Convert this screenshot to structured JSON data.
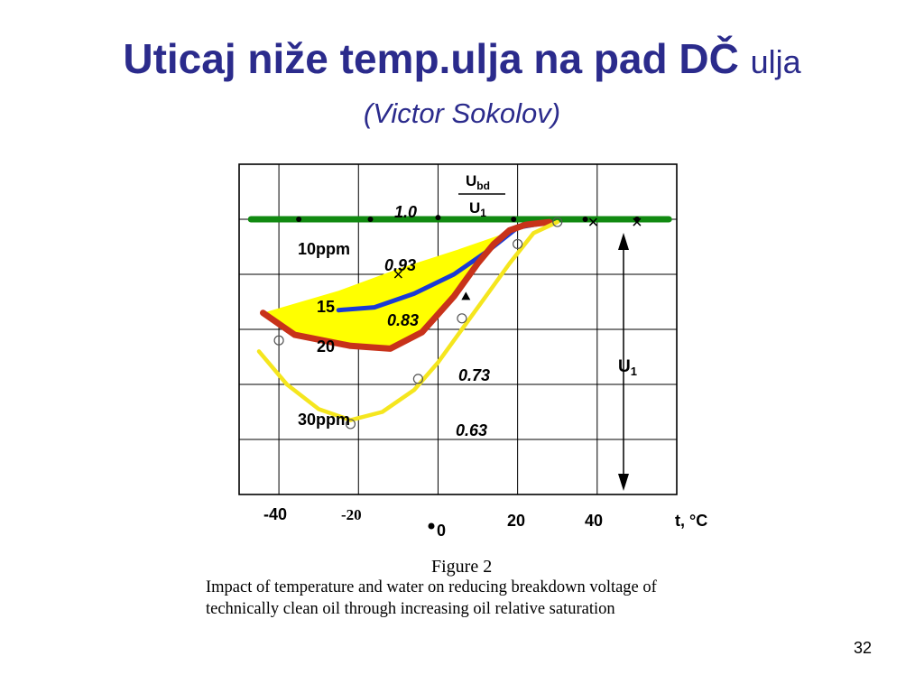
{
  "slide": {
    "title_bold": "Uticaj niže temp.ulja na pad DČ",
    "title_light": "ulja",
    "subtitle": "(Victor Sokolov)",
    "page_number": "32"
  },
  "caption": {
    "figure_label": "Figure 2",
    "line1": "Impact of temperature and water on reducing breakdown voltage of",
    "line2": "technically clean oil through  increasing oil relative saturation"
  },
  "colors": {
    "title": "#2b2b8c",
    "green": "#118a11",
    "blue": "#1a3ad6",
    "red": "#c8321a",
    "yellow": "#ffff00",
    "yellow_line": "#f5e61e"
  },
  "chart_data": {
    "type": "line",
    "xlabel": "t, °C",
    "x_tick_labels": [
      "-40",
      "-20",
      "0",
      "20",
      "40"
    ],
    "xlim": [
      -50,
      60
    ],
    "ylim": [
      0.5,
      1.1
    ],
    "y_ratio_labels": [
      "1.0",
      "0.93",
      "0.83",
      "0.73",
      "0.63"
    ],
    "ratio_label": {
      "numerator": "U",
      "numerator_sub": "bd",
      "denominator": "U",
      "denominator_sub": "1"
    },
    "u1_label": {
      "main": "U",
      "sub": "1"
    },
    "series": [
      {
        "name": "10ppm",
        "color": "green",
        "x": [
          -47,
          58
        ],
        "y": [
          1.0,
          1.0
        ]
      },
      {
        "name": "15",
        "color": "blue",
        "x": [
          -25,
          -16,
          -6,
          4,
          13,
          20,
          28
        ],
        "y": [
          0.835,
          0.84,
          0.865,
          0.9,
          0.945,
          0.985,
          0.995
        ]
      },
      {
        "name": "20",
        "color": "red",
        "x": [
          -44,
          -36,
          -22,
          -12,
          -4,
          4,
          10,
          14,
          18,
          22,
          28
        ],
        "y": [
          0.83,
          0.79,
          0.77,
          0.765,
          0.795,
          0.86,
          0.92,
          0.955,
          0.98,
          0.99,
          0.995
        ]
      },
      {
        "name": "30ppm",
        "color": "yellow_line",
        "x": [
          -45,
          -38,
          -30,
          -22,
          -14,
          -6,
          0,
          6,
          12,
          18,
          24,
          30
        ],
        "y": [
          0.76,
          0.7,
          0.655,
          0.635,
          0.65,
          0.69,
          0.74,
          0.8,
          0.86,
          0.92,
          0.975,
          0.995
        ]
      }
    ],
    "shaded_region": {
      "color": "yellow",
      "x": [
        -44,
        -25,
        -10,
        5,
        13,
        23,
        18,
        10,
        4,
        -4,
        -12,
        -22,
        -36,
        -44
      ],
      "y": [
        0.83,
        0.87,
        0.91,
        0.945,
        0.965,
        0.99,
        0.98,
        0.92,
        0.86,
        0.795,
        0.765,
        0.77,
        0.79,
        0.83
      ]
    },
    "markers": [
      {
        "shape": "dot",
        "x": [
          -35,
          -17,
          0,
          19,
          37,
          50
        ],
        "y": [
          1.0,
          1.0,
          1.003,
          1.0,
          1.0,
          1.0
        ]
      },
      {
        "shape": "cross",
        "x": [
          -10,
          39,
          50
        ],
        "y": [
          0.9,
          0.995,
          0.995
        ]
      },
      {
        "shape": "triangle",
        "x": [
          7
        ],
        "y": [
          0.86
        ]
      },
      {
        "shape": "circle",
        "x": [
          -40,
          -22,
          -5,
          6,
          20,
          30
        ],
        "y": [
          0.78,
          0.628,
          0.71,
          0.82,
          0.955,
          0.995
        ]
      }
    ]
  }
}
